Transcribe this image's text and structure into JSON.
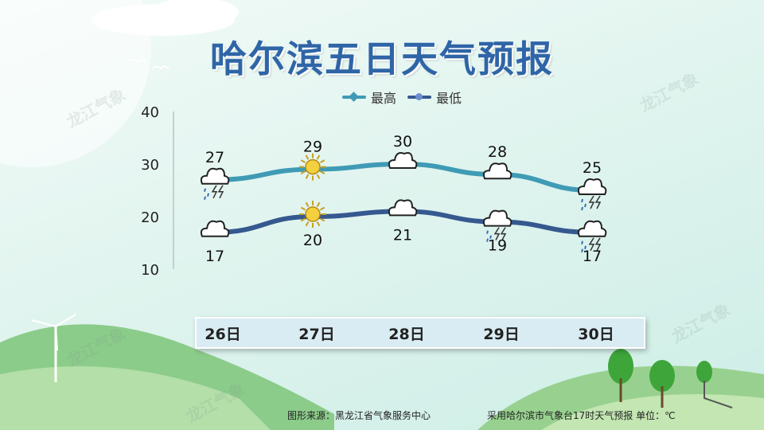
{
  "title": "哈尔滨五日天气预报",
  "legend": {
    "high": "最高",
    "low": "最低"
  },
  "colors": {
    "high": "#3f9bb5",
    "low": "#35598f",
    "title": "#2f65a7"
  },
  "chart_data": {
    "type": "line",
    "categories": [
      "26日",
      "27日",
      "28日",
      "29日",
      "30日"
    ],
    "series": [
      {
        "name": "最高",
        "values": [
          27,
          29,
          30,
          28,
          25
        ]
      },
      {
        "name": "最低",
        "values": [
          17,
          20,
          21,
          19,
          17
        ]
      }
    ],
    "yticks": [
      10,
      20,
      30,
      40
    ],
    "ylim": [
      10,
      40
    ],
    "legend_position": "top",
    "weather_icons": {
      "high": [
        "thunder-rain",
        "sunny",
        "cloudy",
        "cloudy",
        "thunder-rain"
      ],
      "low": [
        "cloudy",
        "sunny",
        "cloudy",
        "thunder-rain",
        "thunder-rain"
      ]
    }
  },
  "footer": {
    "source": "图形来源：黑龙江省气象服务中心",
    "note": "采用哈尔滨市气象台17时天气预报 单位：℃"
  },
  "watermark": "龙江气象"
}
